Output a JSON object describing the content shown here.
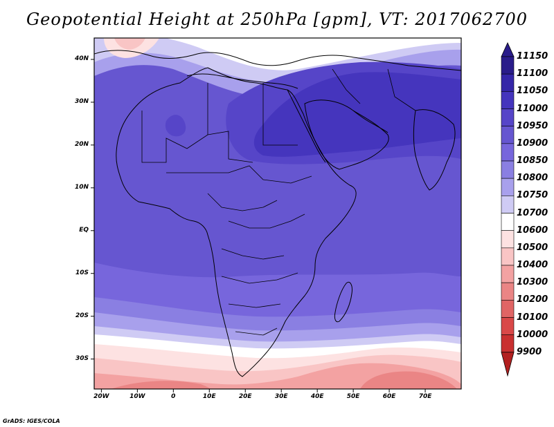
{
  "title": "Geopotential Height at 250hPa [gpm], VT: 2017062700",
  "credit": "GrADS: IGES/COLA",
  "lat_labels": [
    "40N",
    "30N",
    "20N",
    "10N",
    "EQ",
    "10S",
    "20S",
    "30S"
  ],
  "lat_values": [
    40,
    30,
    20,
    10,
    0,
    -10,
    -20,
    -30
  ],
  "lon_labels": [
    "20W",
    "10W",
    "0",
    "10E",
    "20E",
    "30E",
    "40E",
    "50E",
    "60E",
    "70E"
  ],
  "lon_values": [
    -20,
    -10,
    0,
    10,
    20,
    30,
    40,
    50,
    60,
    70
  ],
  "colorbar": {
    "levels": [
      "11150",
      "11100",
      "11050",
      "11000",
      "10950",
      "10900",
      "10850",
      "10800",
      "10750",
      "10700",
      "10600",
      "10500",
      "10400",
      "10300",
      "10200",
      "10100",
      "10000",
      "9900"
    ],
    "colors": [
      "#2a1c8a",
      "#3526a8",
      "#4535bd",
      "#5645c8",
      "#6656d0",
      "#7766dc",
      "#8a7fe2",
      "#a8a0ec",
      "#cfcbf4",
      "#ffffff",
      "#fde2e2",
      "#f9c5c5",
      "#f3a2a2",
      "#ea8585",
      "#e06565",
      "#d94848",
      "#c93030",
      "#b22020"
    ]
  },
  "map": {
    "lon_range": [
      -22,
      80
    ],
    "lat_range": [
      -37,
      45
    ],
    "field_colors": {
      "peak": "#4535bd",
      "high": "#5645c8",
      "main": "#6656d0",
      "mid": "#7766dc",
      "lower": "#8a7fe2",
      "pale": "#a8a0ec",
      "lavender": "#cfcbf4",
      "white": "#ffffff",
      "pink1": "#fde2e2",
      "pink2": "#f9c5c5",
      "pink3": "#f3a2a2",
      "pink4": "#ea8585"
    }
  }
}
